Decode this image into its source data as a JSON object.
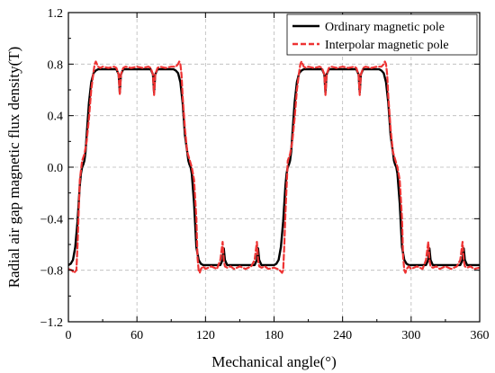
{
  "chart_data": {
    "type": "line",
    "title": "",
    "xlabel": "Mechanical angle(°)",
    "ylabel": "Radial air gap magnetic flux density(T)",
    "xlim": [
      0,
      360
    ],
    "ylim": [
      -1.2,
      1.2
    ],
    "xticks": [
      0,
      60,
      120,
      180,
      240,
      300,
      360
    ],
    "xtick_labels": [
      "0",
      "60",
      "120",
      "180",
      "240",
      "300",
      "360"
    ],
    "yticks": [
      -1.2,
      -0.8,
      -0.4,
      0.0,
      0.4,
      0.8,
      1.2
    ],
    "ytick_labels": [
      "−1.2",
      "−0.8",
      "−0.4",
      "0.0",
      "0.4",
      "0.8",
      "1.2"
    ],
    "grid": true,
    "legend_position": "top-right",
    "series": [
      {
        "name": "Ordinary magnetic pole",
        "color": "#000000",
        "style": "solid",
        "x": [
          0,
          2,
          4,
          6,
          8,
          9,
          10,
          11,
          12,
          13,
          14,
          15,
          16,
          18,
          20,
          22,
          24,
          26,
          28,
          30,
          40,
          42,
          44,
          45,
          46,
          48,
          50,
          60,
          70,
          72,
          74,
          75,
          76,
          78,
          80,
          90,
          92,
          94,
          96,
          98,
          100,
          102,
          104,
          105,
          106,
          107,
          108,
          110,
          112,
          114,
          116,
          118,
          120,
          130,
          133,
          135,
          136,
          137,
          139,
          142,
          150,
          160,
          163,
          165,
          166,
          167,
          169,
          172,
          180,
          182,
          184,
          186,
          188,
          189,
          190,
          191,
          192,
          193,
          194,
          195,
          196,
          198,
          200,
          202,
          204,
          206,
          208,
          210,
          220,
          222,
          224,
          225,
          226,
          228,
          230,
          240,
          250,
          252,
          254,
          255,
          256,
          258,
          260,
          270,
          272,
          274,
          276,
          278,
          280,
          282,
          284,
          285,
          286,
          287,
          288,
          290,
          292,
          294,
          296,
          298,
          300,
          310,
          313,
          315,
          316,
          317,
          319,
          322,
          330,
          340,
          343,
          345,
          346,
          347,
          349,
          352,
          360
        ],
        "y": [
          -0.76,
          -0.75,
          -0.72,
          -0.62,
          -0.42,
          -0.28,
          -0.14,
          -0.05,
          0.0,
          0.02,
          0.05,
          0.12,
          0.25,
          0.5,
          0.66,
          0.73,
          0.75,
          0.76,
          0.76,
          0.76,
          0.76,
          0.76,
          0.72,
          0.58,
          0.72,
          0.76,
          0.76,
          0.76,
          0.76,
          0.76,
          0.72,
          0.58,
          0.72,
          0.76,
          0.76,
          0.76,
          0.76,
          0.75,
          0.73,
          0.66,
          0.5,
          0.25,
          0.12,
          0.05,
          0.02,
          0.0,
          -0.05,
          -0.28,
          -0.62,
          -0.72,
          -0.75,
          -0.76,
          -0.76,
          -0.76,
          -0.76,
          -0.72,
          -0.63,
          -0.72,
          -0.76,
          -0.76,
          -0.76,
          -0.76,
          -0.76,
          -0.72,
          -0.63,
          -0.72,
          -0.76,
          -0.76,
          -0.76,
          -0.75,
          -0.72,
          -0.62,
          -0.42,
          -0.28,
          -0.14,
          -0.05,
          0.0,
          0.02,
          0.05,
          0.12,
          0.25,
          0.5,
          0.66,
          0.73,
          0.75,
          0.76,
          0.76,
          0.76,
          0.76,
          0.76,
          0.72,
          0.58,
          0.72,
          0.76,
          0.76,
          0.76,
          0.76,
          0.76,
          0.72,
          0.58,
          0.72,
          0.76,
          0.76,
          0.76,
          0.76,
          0.75,
          0.73,
          0.66,
          0.5,
          0.25,
          0.12,
          0.05,
          0.02,
          0.0,
          -0.05,
          -0.28,
          -0.62,
          -0.72,
          -0.75,
          -0.76,
          -0.76,
          -0.76,
          -0.76,
          -0.72,
          -0.63,
          -0.72,
          -0.76,
          -0.76,
          -0.76,
          -0.76,
          -0.76,
          -0.72,
          -0.63,
          -0.72,
          -0.76,
          -0.76,
          -0.76
        ]
      },
      {
        "name": "Interpolar magnetic pole",
        "color": "#ee3333",
        "style": "dashed",
        "x": [
          0,
          3,
          5,
          7,
          8,
          9,
          10,
          12,
          14,
          16,
          18,
          20,
          22,
          23,
          24,
          25,
          26,
          28,
          30,
          35,
          40,
          42,
          44,
          45,
          46,
          48,
          50,
          55,
          60,
          65,
          70,
          72,
          74,
          75,
          76,
          78,
          80,
          85,
          90,
          94,
          96,
          97,
          98,
          99,
          100,
          102,
          104,
          106,
          108,
          110,
          112,
          113,
          114,
          115,
          116,
          118,
          120,
          125,
          130,
          133,
          135,
          136,
          137,
          139,
          142,
          145,
          150,
          155,
          160,
          163,
          165,
          166,
          167,
          169,
          172,
          175,
          180,
          183,
          185,
          187,
          188,
          189,
          190,
          192,
          194,
          196,
          198,
          200,
          202,
          203,
          204,
          205,
          206,
          208,
          210,
          215,
          220,
          222,
          224,
          225,
          226,
          228,
          230,
          235,
          240,
          245,
          250,
          252,
          254,
          255,
          256,
          258,
          260,
          265,
          270,
          274,
          276,
          277,
          278,
          279,
          280,
          282,
          284,
          286,
          288,
          290,
          292,
          293,
          294,
          295,
          296,
          298,
          300,
          305,
          310,
          313,
          315,
          316,
          317,
          319,
          322,
          325,
          330,
          335,
          340,
          343,
          345,
          346,
          347,
          349,
          352,
          355,
          360
        ],
        "y": [
          -0.79,
          -0.8,
          -0.82,
          -0.8,
          -0.6,
          -0.35,
          -0.1,
          0.05,
          0.1,
          0.2,
          0.38,
          0.6,
          0.74,
          0.8,
          0.82,
          0.8,
          0.78,
          0.77,
          0.78,
          0.77,
          0.78,
          0.77,
          0.72,
          0.56,
          0.72,
          0.77,
          0.78,
          0.77,
          0.78,
          0.77,
          0.78,
          0.77,
          0.72,
          0.56,
          0.72,
          0.77,
          0.78,
          0.77,
          0.78,
          0.78,
          0.8,
          0.82,
          0.8,
          0.72,
          0.55,
          0.3,
          0.12,
          0.06,
          0.0,
          -0.1,
          -0.4,
          -0.7,
          -0.8,
          -0.82,
          -0.79,
          -0.77,
          -0.79,
          -0.77,
          -0.79,
          -0.72,
          -0.58,
          -0.72,
          -0.77,
          -0.78,
          -0.77,
          -0.79,
          -0.77,
          -0.79,
          -0.77,
          -0.72,
          -0.58,
          -0.72,
          -0.77,
          -0.78,
          -0.77,
          -0.79,
          -0.78,
          -0.79,
          -0.8,
          -0.82,
          -0.8,
          -0.6,
          -0.35,
          0.05,
          0.1,
          0.2,
          0.38,
          0.6,
          0.74,
          0.8,
          0.82,
          0.8,
          0.78,
          0.77,
          0.78,
          0.77,
          0.78,
          0.77,
          0.72,
          0.56,
          0.72,
          0.77,
          0.78,
          0.77,
          0.78,
          0.77,
          0.78,
          0.77,
          0.72,
          0.56,
          0.72,
          0.77,
          0.78,
          0.77,
          0.78,
          0.78,
          0.8,
          0.82,
          0.8,
          0.72,
          0.55,
          0.3,
          0.12,
          0.06,
          0.0,
          -0.1,
          -0.4,
          -0.7,
          -0.8,
          -0.82,
          -0.79,
          -0.77,
          -0.79,
          -0.77,
          -0.79,
          -0.72,
          -0.58,
          -0.72,
          -0.77,
          -0.78,
          -0.77,
          -0.79,
          -0.77,
          -0.79,
          -0.77,
          -0.72,
          -0.58,
          -0.72,
          -0.77,
          -0.78,
          -0.77,
          -0.79,
          -0.78
        ]
      }
    ]
  }
}
